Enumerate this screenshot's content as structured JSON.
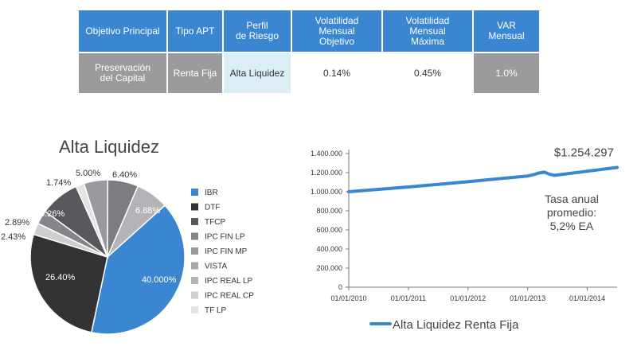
{
  "table": {
    "headers": [
      "Objetivo Principal",
      "Tipo APT",
      "Perfil\nde Riesgo",
      "Volatilidad\nMensual\nObjetivo",
      "Volatilidad\nMensual\nMáxima",
      "VAR\nMensual"
    ],
    "row": [
      "Preservación\ndel Capital",
      "Renta Fija",
      "Alta Liquidez",
      "0.14%",
      "0.45%",
      "1.0%"
    ],
    "row_styles": [
      "gray",
      "gray",
      "light",
      "plain",
      "plain",
      "gray"
    ]
  },
  "chart_data": [
    {
      "type": "pie",
      "title": "Alta Liquidez",
      "slices": [
        {
          "name": "IBR",
          "value": 40.0,
          "label": "40.000%",
          "color": "#3a86d1"
        },
        {
          "name": "DTF",
          "value": 26.4,
          "label": "26.40%",
          "color": "#333336"
        },
        {
          "name": "TFCP",
          "value": 2.43,
          "label": "2.43%",
          "color": "#cfcfd1"
        },
        {
          "name": "IPC FIN LP",
          "value": 2.89,
          "label": "2.89%",
          "color": "#858589"
        },
        {
          "name": "IPC FIN MP",
          "value": 8.26,
          "label": "8.26%",
          "color": "#58585c"
        },
        {
          "name": "VISTA",
          "value": 1.74,
          "label": "1.74%",
          "color": "#e4e4e6"
        },
        {
          "name": "IPC REAL LP",
          "value": 5.0,
          "label": "5.00%",
          "color": "#9a9a9e"
        },
        {
          "name": "IPC REAL CP",
          "value": 6.4,
          "label": "6.40%",
          "color": "#7d7d81"
        },
        {
          "name": "TF LP",
          "value": 6.88,
          "label": "6.88%",
          "color": "#b4b4b8"
        }
      ],
      "legend_order": [
        "IBR",
        "DTF",
        "TFCP",
        "IPC FIN LP",
        "IPC FIN MP",
        "VISTA",
        "IPC REAL LP",
        "IPC REAL CP",
        "TF LP"
      ],
      "legend_colors": [
        "#3a86d1",
        "#333336",
        "#58585c",
        "#858589",
        "#9a9a9e",
        "#a8a8ac",
        "#b4b4b8",
        "#cfcfd1",
        "#e4e4e6"
      ],
      "legend_position": "right"
    },
    {
      "type": "line",
      "x_ticks": [
        "01/01/2010",
        "01/01/2011",
        "01/01/2012",
        "01/01/2013",
        "01/01/2014"
      ],
      "y_ticks": [
        "0",
        "200.000",
        "400.000",
        "600.000",
        "800.000",
        "1.000.000",
        "1.200.000",
        "1.400.000"
      ],
      "ylim": [
        0,
        1400000
      ],
      "xlim": [
        2010.0,
        2014.5
      ],
      "series": [
        {
          "name": "Alta Liquidez Renta Fija",
          "color": "#3a86d1",
          "points": [
            [
              2010.0,
              1000000
            ],
            [
              2010.5,
              1025000
            ],
            [
              2011.0,
              1050000
            ],
            [
              2011.5,
              1077000
            ],
            [
              2012.0,
              1105000
            ],
            [
              2012.5,
              1135000
            ],
            [
              2013.0,
              1165000
            ],
            [
              2013.1,
              1178000
            ],
            [
              2013.18,
              1195000
            ],
            [
              2013.28,
              1205000
            ],
            [
              2013.36,
              1185000
            ],
            [
              2013.45,
              1172000
            ],
            [
              2013.6,
              1183000
            ],
            [
              2014.0,
              1215000
            ],
            [
              2014.5,
              1254297
            ]
          ]
        }
      ],
      "end_label": "$1.254.297",
      "annotation": "Tasa anual\npromedio:\n5,2% EA",
      "legend_label": "Alta Liquidez Renta Fija",
      "grid": false
    }
  ]
}
